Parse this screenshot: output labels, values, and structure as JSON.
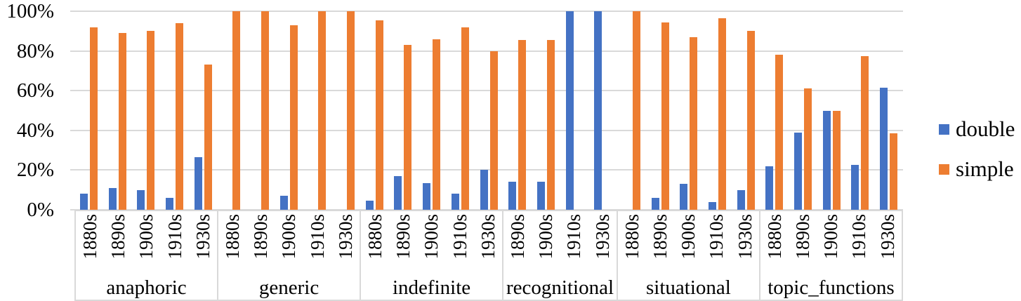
{
  "chart_data": {
    "type": "bar",
    "title": "",
    "xlabel": "",
    "ylabel": "",
    "ylim": [
      0,
      100
    ],
    "grid": true,
    "legend_position": "right",
    "y_ticks": [
      "100%",
      "80%",
      "60%",
      "40%",
      "20%",
      "0%"
    ],
    "colors": {
      "double": "#4472C4",
      "simple": "#ED7D31",
      "gridline": "#D9D9D9",
      "text": "#000000"
    },
    "series_names": [
      "double",
      "simple"
    ],
    "legend": [
      {
        "label": "double",
        "color": "#4472C4"
      },
      {
        "label": "simple",
        "color": "#ED7D31"
      }
    ],
    "groups": [
      {
        "label": "anaphoric",
        "decades": [
          "1880s",
          "1890s",
          "1900s",
          "1910s",
          "1930s"
        ],
        "double": [
          8,
          11,
          10,
          6,
          26.5
        ],
        "simple": [
          92,
          89,
          90,
          94,
          73
        ]
      },
      {
        "label": "generic",
        "decades": [
          "1880s",
          "1890s",
          "1900s",
          "1910s",
          "1930s"
        ],
        "double": [
          0,
          0,
          7,
          0,
          0
        ],
        "simple": [
          100,
          100,
          93,
          100,
          100
        ]
      },
      {
        "label": "indefinite",
        "decades": [
          "1880s",
          "1890s",
          "1900s",
          "1910s",
          "1930s"
        ],
        "double": [
          4.5,
          17,
          13.5,
          8,
          20
        ],
        "simple": [
          95.5,
          83,
          86,
          92,
          80
        ]
      },
      {
        "label": "recognitional",
        "decades": [
          "1890s",
          "1900s",
          "1910s",
          "1930s"
        ],
        "double": [
          14,
          14,
          100,
          100
        ],
        "simple": [
          85.5,
          85.5,
          0,
          0
        ]
      },
      {
        "label": "situational",
        "decades": [
          "1880s",
          "1890s",
          "1900s",
          "1910s",
          "1930s"
        ],
        "double": [
          0,
          6,
          13,
          4,
          10
        ],
        "simple": [
          100,
          94.5,
          87,
          96.5,
          90
        ]
      },
      {
        "label": "topic_functions",
        "decades": [
          "1880s",
          "1890s",
          "1900s",
          "1910s",
          "1930s"
        ],
        "double": [
          22,
          39,
          50,
          22.5,
          61.5
        ],
        "simple": [
          78,
          61,
          50,
          77.5,
          38.5
        ]
      }
    ]
  }
}
